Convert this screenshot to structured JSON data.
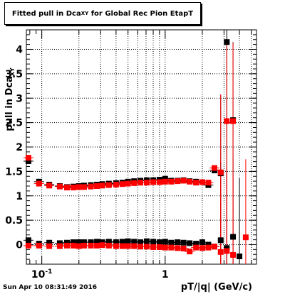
{
  "title": {
    "main": "Fitted pull in Dca",
    "sub": "XY",
    "rest": "for Global Rec Pion EtapT"
  },
  "timestamp": "Sun Apr 10 08:31:49 2016",
  "chart_data": {
    "type": "scatter",
    "xlabel": "pT/|q| (GeV/c)",
    "ylabel": "pull in Dca",
    "ylabel_sub": "XY",
    "x_scale": "log",
    "xlim": [
      0.075,
      5.5
    ],
    "ylim": [
      -0.4,
      4.4
    ],
    "grid": true,
    "x_tick_labels": [
      {
        "value": 0.1,
        "label": "10",
        "sup": "-1"
      },
      {
        "value": 1,
        "label": "1",
        "sup": ""
      }
    ],
    "y_ticks": [
      0,
      0.5,
      1,
      1.5,
      2,
      2.5,
      3,
      3.5,
      4
    ],
    "y_tick_labels": [
      "0",
      "0.5",
      "1",
      "1.5",
      "2",
      "2.5",
      "3",
      "3.5",
      "4"
    ],
    "series": [
      {
        "marker": "square",
        "color": "#000000",
        "x": [
          0.078,
          0.095,
          0.115,
          0.14,
          0.16,
          0.18,
          0.2,
          0.22,
          0.25,
          0.28,
          0.31,
          0.35,
          0.4,
          0.45,
          0.5,
          0.56,
          0.63,
          0.71,
          0.8,
          0.9,
          1.0,
          1.12,
          1.26,
          1.41,
          1.58,
          1.78,
          2.0,
          2.24,
          2.51,
          2.82,
          3.16,
          3.55
        ],
        "y": [
          1.71,
          1.29,
          1.23,
          1.2,
          1.18,
          1.19,
          1.2,
          1.21,
          1.22,
          1.23,
          1.24,
          1.25,
          1.26,
          1.27,
          1.29,
          1.3,
          1.31,
          1.32,
          1.32,
          1.33,
          1.35,
          1.31,
          1.31,
          1.32,
          1.3,
          1.29,
          1.28,
          1.22,
          1.52,
          1.46,
          4.15,
          2.55
        ]
      },
      {
        "marker": "square",
        "color": "#000000",
        "x": [
          0.078,
          0.095,
          0.115,
          0.14,
          0.16,
          0.18,
          0.2,
          0.22,
          0.25,
          0.28,
          0.31,
          0.35,
          0.4,
          0.45,
          0.5,
          0.56,
          0.63,
          0.71,
          0.8,
          0.9,
          1.0,
          1.12,
          1.26,
          1.41,
          1.58,
          1.78,
          2.0,
          2.24,
          2.51,
          2.82,
          3.16,
          3.55,
          4.0
        ],
        "y": [
          0.09,
          0.02,
          0.04,
          0.03,
          0.04,
          0.05,
          0.05,
          0.05,
          0.05,
          0.06,
          0.05,
          0.06,
          0.05,
          0.06,
          0.07,
          0.06,
          0.05,
          0.07,
          0.06,
          0.05,
          0.06,
          0.04,
          0.05,
          0.04,
          0.03,
          0.02,
          0.05,
          0.0,
          -0.04,
          0.09,
          -0.07,
          0.16,
          -0.24
        ]
      },
      {
        "marker": "square",
        "color": "#ff0000",
        "x": [
          0.078,
          0.095,
          0.115,
          0.14,
          0.16,
          0.18,
          0.2,
          0.22,
          0.25,
          0.28,
          0.31,
          0.35,
          0.4,
          0.45,
          0.5,
          0.56,
          0.63,
          0.71,
          0.8,
          0.9,
          1.0,
          1.12,
          1.26,
          1.41,
          1.58,
          1.78,
          2.0,
          2.24,
          2.51,
          2.82,
          3.16,
          3.55
        ],
        "y": [
          1.78,
          1.25,
          1.21,
          1.19,
          1.17,
          1.17,
          1.18,
          1.18,
          1.19,
          1.2,
          1.21,
          1.22,
          1.23,
          1.24,
          1.25,
          1.26,
          1.27,
          1.27,
          1.28,
          1.28,
          1.29,
          1.29,
          1.3,
          1.31,
          1.29,
          1.27,
          1.28,
          1.27,
          1.57,
          1.48,
          2.53,
          2.53
        ]
      },
      {
        "marker": "square",
        "color": "#ff0000",
        "x": [
          0.078,
          0.095,
          0.115,
          0.14,
          0.16,
          0.18,
          0.2,
          0.22,
          0.25,
          0.28,
          0.31,
          0.35,
          0.4,
          0.45,
          0.5,
          0.56,
          0.63,
          0.71,
          0.8,
          0.9,
          1.0,
          1.12,
          1.26,
          1.41,
          1.58,
          1.78,
          2.0,
          2.24,
          2.51,
          2.82,
          3.16,
          3.55,
          4.5
        ],
        "y": [
          -0.02,
          -0.02,
          -0.03,
          -0.03,
          -0.02,
          -0.02,
          -0.03,
          -0.02,
          -0.02,
          -0.02,
          -0.01,
          -0.02,
          -0.03,
          -0.03,
          -0.03,
          -0.03,
          -0.04,
          -0.04,
          -0.05,
          -0.05,
          -0.06,
          -0.06,
          -0.07,
          -0.08,
          -0.14,
          -0.06,
          -0.07,
          -0.06,
          -0.04,
          -0.15,
          -0.13,
          -0.21,
          0.15
        ]
      }
    ]
  }
}
